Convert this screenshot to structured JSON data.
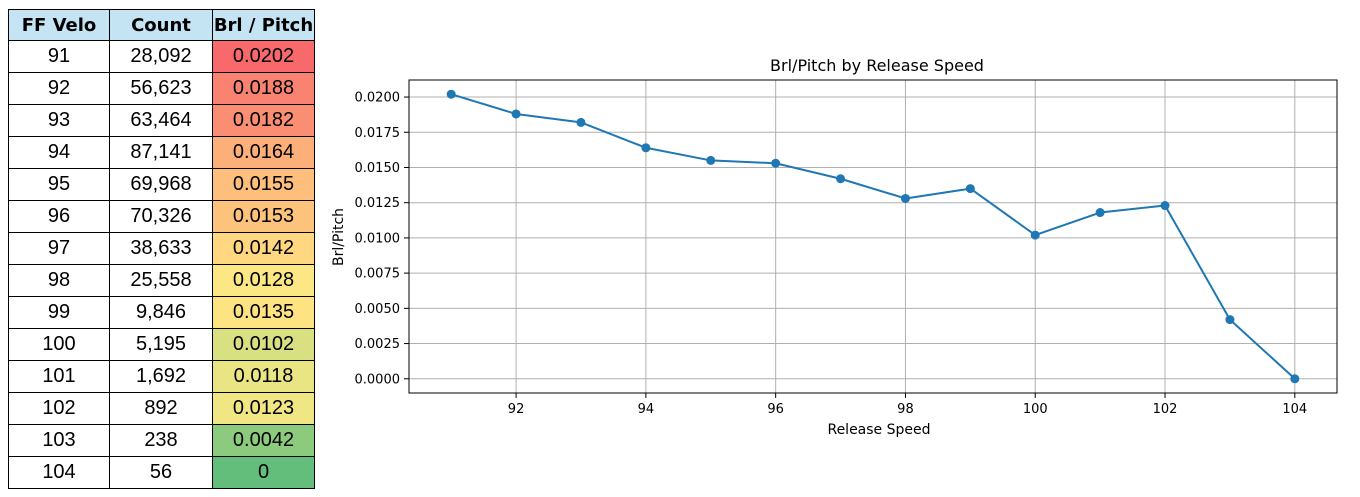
{
  "table": {
    "headers": [
      "FF Velo",
      "Count",
      "Brl / Pitch"
    ],
    "rows": [
      {
        "velo": "91",
        "count": "28,092",
        "brl": "0.0202",
        "color": "#f8696b"
      },
      {
        "velo": "92",
        "count": "56,623",
        "brl": "0.0188",
        "color": "#f98370"
      },
      {
        "velo": "93",
        "count": "63,464",
        "brl": "0.0182",
        "color": "#fa8e72"
      },
      {
        "velo": "94",
        "count": "87,141",
        "brl": "0.0164",
        "color": "#fcaf78"
      },
      {
        "velo": "95",
        "count": "69,968",
        "brl": "0.0155",
        "color": "#fdbf7b"
      },
      {
        "velo": "96",
        "count": "70,326",
        "brl": "0.0153",
        "color": "#fdc37c"
      },
      {
        "velo": "97",
        "count": "38,633",
        "brl": "0.0142",
        "color": "#fed780"
      },
      {
        "velo": "98",
        "count": "25,558",
        "brl": "0.0128",
        "color": "#fbe884"
      },
      {
        "velo": "99",
        "count": "9,846",
        "brl": "0.0135",
        "color": "#fee382"
      },
      {
        "velo": "100",
        "count": "5,195",
        "brl": "0.0102",
        "color": "#d9e082"
      },
      {
        "velo": "101",
        "count": "1,692",
        "brl": "0.0118",
        "color": "#eae583"
      },
      {
        "velo": "102",
        "count": "892",
        "brl": "0.0123",
        "color": "#f0e683"
      },
      {
        "velo": "103",
        "count": "238",
        "brl": "0.0042",
        "color": "#8ccb7e"
      },
      {
        "velo": "104",
        "count": "56",
        "brl": "0",
        "color": "#63be7b"
      }
    ]
  },
  "chart_data": {
    "type": "line",
    "title": "Brl/Pitch by Release Speed",
    "xlabel": "Release Speed",
    "ylabel": "Brl/Pitch",
    "x": [
      91,
      92,
      93,
      94,
      95,
      96,
      97,
      98,
      99,
      100,
      101,
      102,
      103,
      104
    ],
    "y": [
      0.0202,
      0.0188,
      0.0182,
      0.0164,
      0.0155,
      0.0153,
      0.0142,
      0.0128,
      0.0135,
      0.0102,
      0.0118,
      0.0123,
      0.0042,
      0.0
    ],
    "xlim": [
      90.35,
      104.65
    ],
    "ylim": [
      -0.00101,
      0.02121
    ],
    "xticks": [
      92,
      94,
      96,
      98,
      100,
      102,
      104
    ],
    "xtick_labels": [
      "92",
      "94",
      "96",
      "98",
      "100",
      "102",
      "104"
    ],
    "yticks": [
      0.0,
      0.0025,
      0.005,
      0.0075,
      0.01,
      0.0125,
      0.015,
      0.0175,
      0.02
    ],
    "ytick_labels": [
      "0.0000",
      "0.0025",
      "0.0050",
      "0.0075",
      "0.0100",
      "0.0125",
      "0.0150",
      "0.0175",
      "0.0200"
    ],
    "grid": true,
    "line_color": "#1f77b4",
    "grid_color": "#b0b0b0"
  }
}
